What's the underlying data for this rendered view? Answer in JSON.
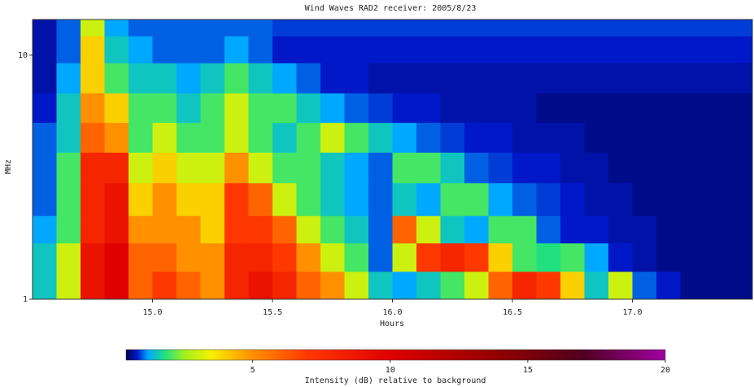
{
  "chart_data": {
    "type": "heatmap",
    "title": "Wind Waves RAD2 receiver: 2005/8/23",
    "xlabel": "Hours",
    "ylabel": "MHz",
    "xlim": [
      14.5,
      17.5
    ],
    "ylim": [
      1,
      14
    ],
    "ylog": true,
    "xticks": [
      {
        "value": 15,
        "label": "15.0"
      },
      {
        "value": 15.5,
        "label": "15.5"
      },
      {
        "value": 16,
        "label": "16.0"
      },
      {
        "value": 16.5,
        "label": "16.5"
      },
      {
        "value": 17,
        "label": "17.0"
      }
    ],
    "yticks": [
      1,
      10
    ],
    "xbins": [
      14.5,
      14.6,
      14.7,
      14.8,
      14.9,
      15.0,
      15.1,
      15.2,
      15.3,
      15.4,
      15.5,
      15.6,
      15.7,
      15.8,
      15.9,
      16.0,
      16.1,
      16.2,
      16.3,
      16.4,
      16.5,
      16.6,
      16.7,
      16.8,
      16.9,
      17.0,
      17.1,
      17.2,
      17.3,
      17.4,
      17.5
    ],
    "ybins": [
      1,
      1.3,
      1.7,
      2.2,
      3,
      4,
      5.3,
      7,
      9.3,
      12,
      14
    ],
    "z": [
      [
        1.5,
        3,
        9,
        10,
        6,
        7,
        6,
        5,
        8,
        9,
        8,
        6,
        5,
        3,
        1.5,
        1.2,
        1.5,
        2,
        3,
        6,
        8,
        7,
        4,
        1.5,
        3,
        1,
        0.8,
        0.6,
        0.6,
        0.6
      ],
      [
        1.5,
        3,
        9,
        10,
        6,
        6,
        5,
        5,
        8,
        8,
        7,
        5,
        3,
        2,
        1,
        3,
        7,
        8,
        7,
        4,
        2,
        1.8,
        2,
        1.2,
        0.8,
        0.7,
        0.6,
        0.6,
        0.6,
        0.6
      ],
      [
        1.2,
        2,
        8,
        9,
        5,
        5,
        5,
        4,
        7,
        7,
        6,
        3,
        2,
        1.5,
        1,
        6,
        3,
        1.5,
        1.2,
        2,
        2,
        1,
        0.8,
        0.8,
        0.7,
        0.7,
        0.6,
        0.6,
        0.6,
        0.6
      ],
      [
        1,
        2,
        8,
        9,
        4,
        5,
        4,
        4,
        7,
        6,
        3,
        2,
        1.5,
        1.2,
        1,
        1.5,
        1.2,
        2,
        2,
        1.2,
        1,
        0.9,
        0.8,
        0.7,
        0.7,
        0.6,
        0.6,
        0.6,
        0.6,
        0.6
      ],
      [
        1,
        2,
        8,
        8,
        3,
        4,
        3,
        3,
        5,
        3,
        2,
        2,
        1.5,
        1.2,
        1,
        2,
        2,
        1.5,
        1,
        0.9,
        0.8,
        0.8,
        0.7,
        0.7,
        0.6,
        0.6,
        0.6,
        0.6,
        0.6,
        0.6
      ],
      [
        1,
        1.5,
        6,
        5,
        2,
        3,
        2,
        2,
        3,
        2,
        1.5,
        2,
        3,
        2,
        1.5,
        1.2,
        1,
        0.9,
        0.8,
        0.8,
        0.7,
        0.7,
        0.7,
        0.6,
        0.6,
        0.6,
        0.6,
        0.6,
        0.6,
        0.6
      ],
      [
        0.8,
        1.5,
        5,
        4,
        2,
        2,
        1.5,
        2,
        3,
        2,
        2,
        1.5,
        1.2,
        1,
        0.9,
        0.8,
        0.8,
        0.7,
        0.7,
        0.7,
        0.7,
        0.6,
        0.6,
        0.6,
        0.6,
        0.6,
        0.6,
        0.6,
        0.6,
        0.6
      ],
      [
        0.7,
        1.2,
        4,
        2,
        1.5,
        1.5,
        1.2,
        1.5,
        2,
        1.5,
        1.2,
        1,
        0.8,
        0.8,
        0.7,
        0.7,
        0.7,
        0.7,
        0.7,
        0.7,
        0.7,
        0.7,
        0.7,
        0.7,
        0.7,
        0.7,
        0.7,
        0.7,
        0.7,
        0.7
      ],
      [
        0.7,
        1,
        4,
        1.5,
        1.2,
        1,
        1,
        1,
        1.2,
        1,
        0.8,
        0.8,
        0.8,
        0.8,
        0.8,
        0.8,
        0.8,
        0.8,
        0.8,
        0.8,
        0.8,
        0.8,
        0.8,
        0.8,
        0.8,
        0.8,
        0.8,
        0.8,
        0.8,
        0.8
      ],
      [
        0.7,
        1,
        3,
        1.2,
        1,
        1,
        1,
        1,
        1,
        1,
        0.9,
        0.9,
        0.9,
        0.9,
        0.9,
        0.9,
        0.9,
        0.9,
        0.9,
        0.9,
        0.9,
        0.9,
        0.9,
        0.9,
        0.9,
        0.9,
        0.9,
        0.9,
        0.9,
        0.9
      ]
    ],
    "colorbar": {
      "label": "Intensity (dB) relative to background",
      "zlim": [
        0.4,
        20
      ],
      "ticks": [
        5,
        10,
        15,
        20
      ],
      "colormap": [
        {
          "value": 0.4,
          "color": "#00004a"
        },
        {
          "value": 0.8,
          "color": "#0018c8"
        },
        {
          "value": 1.2,
          "color": "#00a8ff"
        },
        {
          "value": 1.8,
          "color": "#20e080"
        },
        {
          "value": 2.5,
          "color": "#a0f020"
        },
        {
          "value": 3.5,
          "color": "#f8f000"
        },
        {
          "value": 5,
          "color": "#ff9000"
        },
        {
          "value": 7,
          "color": "#ff3800"
        },
        {
          "value": 10,
          "color": "#e00000"
        },
        {
          "value": 14,
          "color": "#900000"
        },
        {
          "value": 17,
          "color": "#500020"
        },
        {
          "value": 20,
          "color": "#a000a0"
        }
      ]
    }
  }
}
